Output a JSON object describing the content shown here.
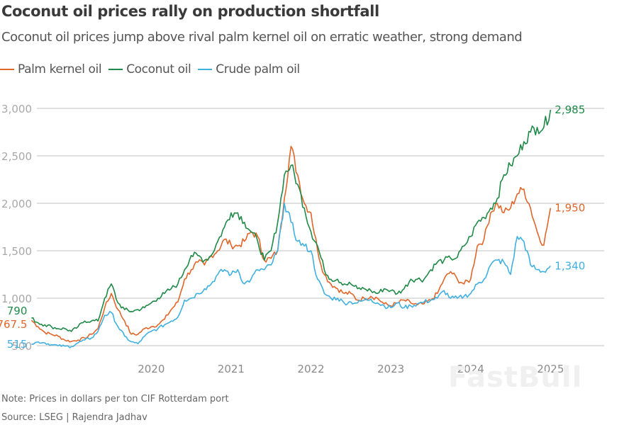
{
  "header": {
    "title": "Coconut oil prices rally on production shortfall",
    "subtitle": "Coconut oil prices jump above rival palm kernel oil on erratic weather, strong demand"
  },
  "legend": [
    {
      "label": "Palm kernel oil",
      "color": "#e0662a"
    },
    {
      "label": "Coconut oil",
      "color": "#1f8a47"
    },
    {
      "label": "Crude palm oil",
      "color": "#3fb0e0"
    }
  ],
  "footer": {
    "note": "Note: Prices in dollars per ton CIF Rotterdam port",
    "source": "Source: LSEG | Rajendra Jadhav",
    "watermark": "FastBull"
  },
  "chart_data": {
    "type": "line",
    "title": "Coconut oil prices rally on production shortfall",
    "subtitle": "Coconut oil prices jump above rival palm kernel oil on erratic weather, strong demand",
    "xlabel": "",
    "ylabel": "Prices in dollars per ton",
    "ylim": [
      500,
      3000
    ],
    "yticks": [
      500,
      1000,
      1500,
      2000,
      2500,
      3000
    ],
    "ytick_labels": [
      "500",
      "1,000",
      "1,500",
      "2,000",
      "2,500",
      "3,000"
    ],
    "xlim": [
      "2019-01",
      "2025-08"
    ],
    "xticks": [
      "2020",
      "2021",
      "2022",
      "2023",
      "2024",
      "2025"
    ],
    "grid": true,
    "legend_position": "top-left",
    "x_start": "2019-01",
    "x_step": "month",
    "series": [
      {
        "name": "Palm kernel oil",
        "color": "#e0662a",
        "start_label": "767.5",
        "end_label": "1,950",
        "values": [
          767.5,
          700,
          640,
          620,
          600,
          560,
          545,
          560,
          580,
          620,
          680,
          900,
          1050,
          880,
          760,
          620,
          620,
          680,
          700,
          720,
          780,
          880,
          960,
          1200,
          1300,
          1380,
          1350,
          1450,
          1500,
          1620,
          1560,
          1550,
          1600,
          1700,
          1650,
          1400,
          1420,
          1500,
          2050,
          2600,
          2300,
          2000,
          1900,
          1500,
          1250,
          1150,
          1100,
          1050,
          1050,
          980,
          1000,
          1020,
          1000,
          940,
          920,
          950,
          980,
          950,
          930,
          940,
          980,
          1050,
          1200,
          1280,
          1200,
          1150,
          1200,
          1550,
          1620,
          1900,
          2000,
          1900,
          1950,
          2100,
          2150,
          1950,
          1700,
          1560,
          1950
        ]
      },
      {
        "name": "Coconut oil",
        "color": "#1f8a47",
        "start_label": "790",
        "end_label": "2,985",
        "values": [
          790,
          740,
          720,
          700,
          680,
          680,
          650,
          700,
          760,
          760,
          760,
          1000,
          1150,
          950,
          880,
          860,
          880,
          900,
          950,
          1000,
          1050,
          1100,
          1150,
          1300,
          1450,
          1450,
          1400,
          1450,
          1600,
          1750,
          1900,
          1900,
          1800,
          1700,
          1600,
          1400,
          1500,
          1800,
          2300,
          2400,
          2200,
          1950,
          1700,
          1550,
          1300,
          1200,
          1200,
          1150,
          1150,
          1100,
          1100,
          1080,
          1050,
          1100,
          1080,
          1050,
          1100,
          1200,
          1200,
          1200,
          1300,
          1380,
          1400,
          1420,
          1430,
          1550,
          1650,
          1800,
          1850,
          1950,
          2050,
          2300,
          2400,
          2500,
          2650,
          2750,
          2800,
          2800,
          2985
        ]
      },
      {
        "name": "Crude palm oil",
        "color": "#3fb0e0",
        "start_label": "515",
        "end_label": "1,340",
        "values": [
          515,
          540,
          530,
          510,
          500,
          495,
          490,
          530,
          560,
          580,
          650,
          820,
          850,
          700,
          600,
          540,
          520,
          600,
          650,
          680,
          720,
          760,
          800,
          980,
          1000,
          1050,
          1100,
          1150,
          1250,
          1300,
          1250,
          1300,
          1150,
          1200,
          1300,
          1300,
          1350,
          1500,
          2000,
          1800,
          1600,
          1550,
          1500,
          1200,
          1050,
          1000,
          1000,
          950,
          960,
          950,
          980,
          990,
          950,
          920,
          900,
          950,
          900,
          920,
          940,
          960,
          980,
          1000,
          1080,
          1000,
          1000,
          1020,
          1050,
          1150,
          1200,
          1350,
          1400,
          1380,
          1250,
          1650,
          1600,
          1350,
          1300,
          1280,
          1340
        ]
      }
    ]
  }
}
